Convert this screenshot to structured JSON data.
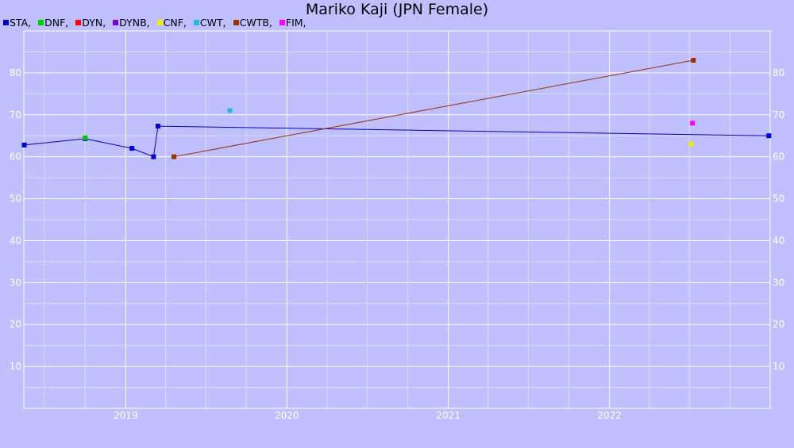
{
  "chart_data": {
    "type": "line",
    "title": "Mariko Kaji (JPN Female)",
    "xlabel": "",
    "ylabel": "",
    "x_ticks": [
      "2019",
      "2020",
      "2021",
      "2022"
    ],
    "y_ticks": [
      10,
      20,
      30,
      40,
      50,
      60,
      70,
      80
    ],
    "xlim": [
      "2018-05-15",
      "2022-12-31"
    ],
    "ylim": [
      0,
      90
    ],
    "grid": true,
    "legend_position": "top-left",
    "legend_suffix": ",",
    "series": [
      {
        "name": "STA",
        "color": "#0000cc",
        "connected": true,
        "points": [
          [
            "2018-05-16",
            62.8
          ],
          [
            "2018-10-01",
            64.3
          ],
          [
            "2019-01-15",
            62.0
          ],
          [
            "2019-03-05",
            60.0
          ],
          [
            "2019-03-15",
            67.3
          ],
          [
            "2022-12-28",
            65.0
          ]
        ]
      },
      {
        "name": "DNF",
        "color": "#00cc00",
        "connected": false,
        "points": [
          [
            "2018-10-01",
            64.5
          ]
        ]
      },
      {
        "name": "DYN",
        "color": "#ff0000",
        "connected": false,
        "points": []
      },
      {
        "name": "DYNB",
        "color": "#7700dd",
        "connected": false,
        "points": []
      },
      {
        "name": "CNF",
        "color": "#eeee00",
        "connected": false,
        "points": [
          [
            "2022-07-05",
            63.0
          ]
        ]
      },
      {
        "name": "CWT",
        "color": "#22bbdd",
        "connected": false,
        "points": [
          [
            "2019-08-25",
            71.0
          ]
        ]
      },
      {
        "name": "CWTB",
        "color": "#993300",
        "connected": true,
        "points": [
          [
            "2019-04-20",
            60.0
          ],
          [
            "2022-07-10",
            83.0
          ]
        ]
      },
      {
        "name": "FIM",
        "color": "#ff00ff",
        "connected": false,
        "points": [
          [
            "2022-07-08",
            68.0
          ]
        ]
      }
    ]
  }
}
